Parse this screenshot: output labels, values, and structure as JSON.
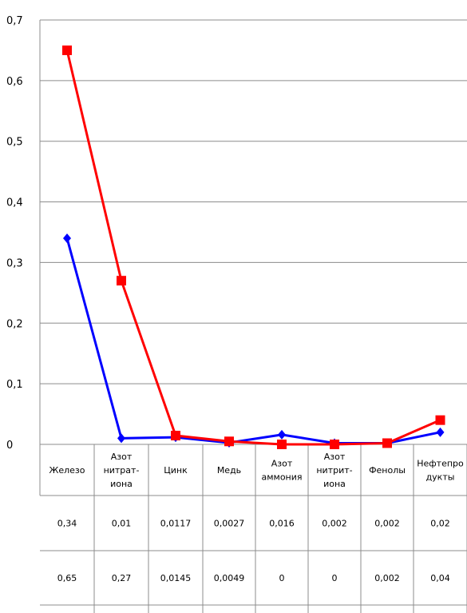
{
  "chart_data": {
    "type": "line",
    "categories": [
      "Железо",
      "Азот нитрат-иона",
      "Цинк",
      "Медь",
      "Азот аммония",
      "Азот нитрит-иона",
      "Фенолы",
      "Нефтепродукты"
    ],
    "category_lines": [
      [
        "Железо"
      ],
      [
        "Азот",
        "нитрат-",
        "иона"
      ],
      [
        "Цинк"
      ],
      [
        "Медь"
      ],
      [
        "Азот",
        "аммония"
      ],
      [
        "Азот",
        "нитрит-",
        "иона"
      ],
      [
        "Фенолы"
      ],
      [
        "Нефтепро",
        "дукты"
      ]
    ],
    "series": [
      {
        "color": "#0000ff",
        "marker": "diamond",
        "values": [
          0.34,
          0.01,
          0.0117,
          0.0027,
          0.016,
          0.002,
          0.002,
          0.02
        ],
        "labels": [
          "0,34",
          "0,01",
          "0,0117",
          "0,0027",
          "0,016",
          "0,002",
          "0,002",
          "0,02"
        ]
      },
      {
        "color": "#ff0000",
        "marker": "square",
        "values": [
          0.65,
          0.27,
          0.0145,
          0.0049,
          0,
          0,
          0.002,
          0.04
        ],
        "labels": [
          "0,65",
          "0,27",
          "0,0145",
          "0,0049",
          "0",
          "0",
          "0,002",
          "0,04"
        ]
      }
    ],
    "ylim": [
      0,
      0.7
    ],
    "yticks": [
      "0",
      "0,1",
      "0,2",
      "0,3",
      "0,4",
      "0,5",
      "0,6",
      "0,7"
    ],
    "grid": true,
    "title": "",
    "xlabel": "",
    "ylabel": ""
  }
}
